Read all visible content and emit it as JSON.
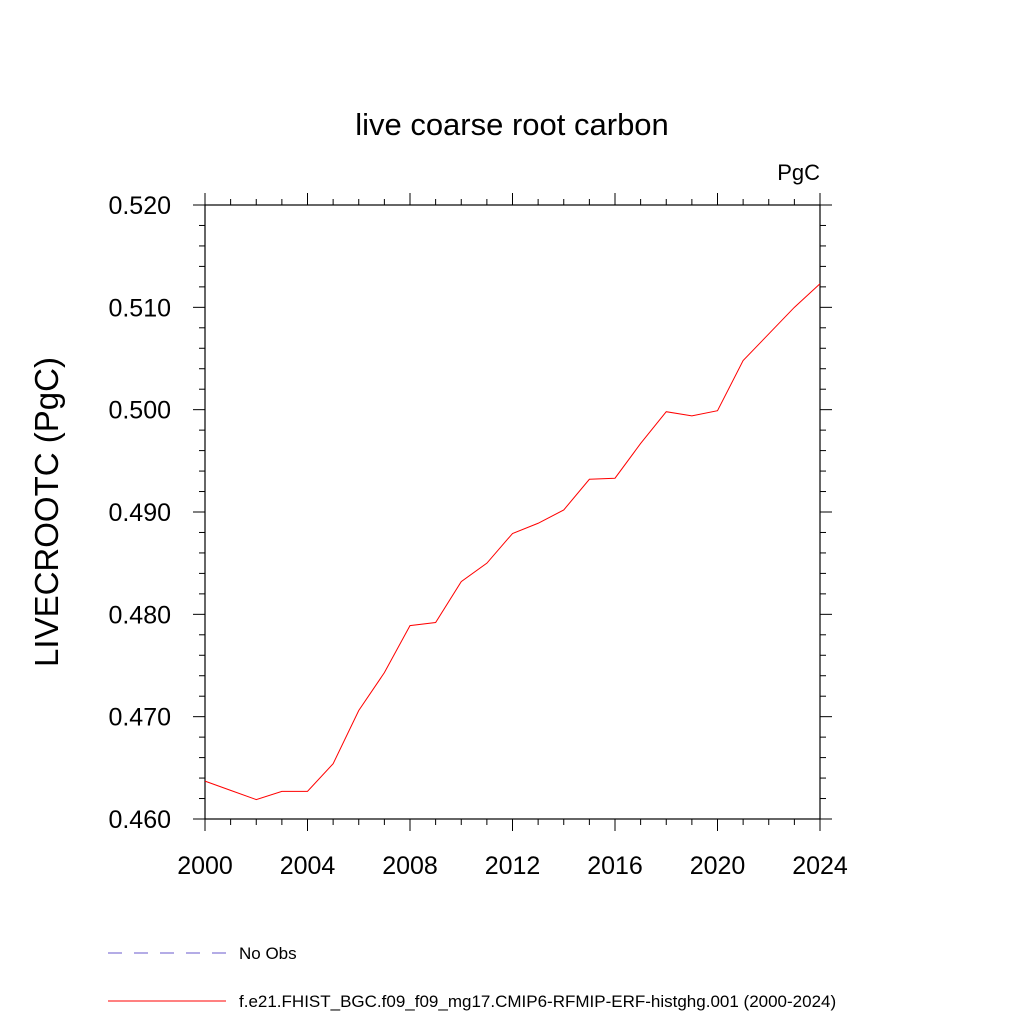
{
  "chart_data": {
    "type": "line",
    "title": "live coarse root carbon",
    "units_label": "PgC",
    "xlabel": "",
    "ylabel": "LIVECROOTC  (PgC)",
    "xlim": [
      2000,
      2024
    ],
    "ylim": [
      0.46,
      0.52
    ],
    "x_ticks": [
      2000,
      2004,
      2008,
      2012,
      2016,
      2020,
      2024
    ],
    "x_tick_labels": [
      "2000",
      "2004",
      "2008",
      "2012",
      "2016",
      "2020",
      "2024"
    ],
    "y_ticks": [
      0.46,
      0.47,
      0.48,
      0.49,
      0.5,
      0.51,
      0.52
    ],
    "y_tick_labels": [
      "0.460",
      "0.470",
      "0.480",
      "0.490",
      "0.500",
      "0.510",
      "0.520"
    ],
    "grid": false,
    "legend_position": "bottom",
    "series": [
      {
        "name": "f.e21.FHIST_BGC.f09_f09_mg17.CMIP6-RFMIP-ERF-histghg.001 (2000-2024)",
        "color": "#ff0000",
        "style": "solid",
        "x": [
          2000,
          2001,
          2002,
          2003,
          2004,
          2005,
          2006,
          2007,
          2008,
          2009,
          2010,
          2011,
          2012,
          2013,
          2014,
          2015,
          2016,
          2017,
          2018,
          2019,
          2020,
          2021,
          2022,
          2023,
          2024
        ],
        "values": [
          0.4637,
          0.4628,
          0.4619,
          0.4627,
          0.4627,
          0.4654,
          0.4706,
          0.4743,
          0.4789,
          0.4792,
          0.4832,
          0.485,
          0.4879,
          0.4889,
          0.4902,
          0.4932,
          0.4933,
          0.4967,
          0.4998,
          0.4994,
          0.4999,
          0.5048,
          0.5074,
          0.51,
          0.5123
        ]
      },
      {
        "name": "No Obs",
        "color": "#6a5acd",
        "style": "dashed",
        "x": [],
        "values": []
      }
    ]
  }
}
